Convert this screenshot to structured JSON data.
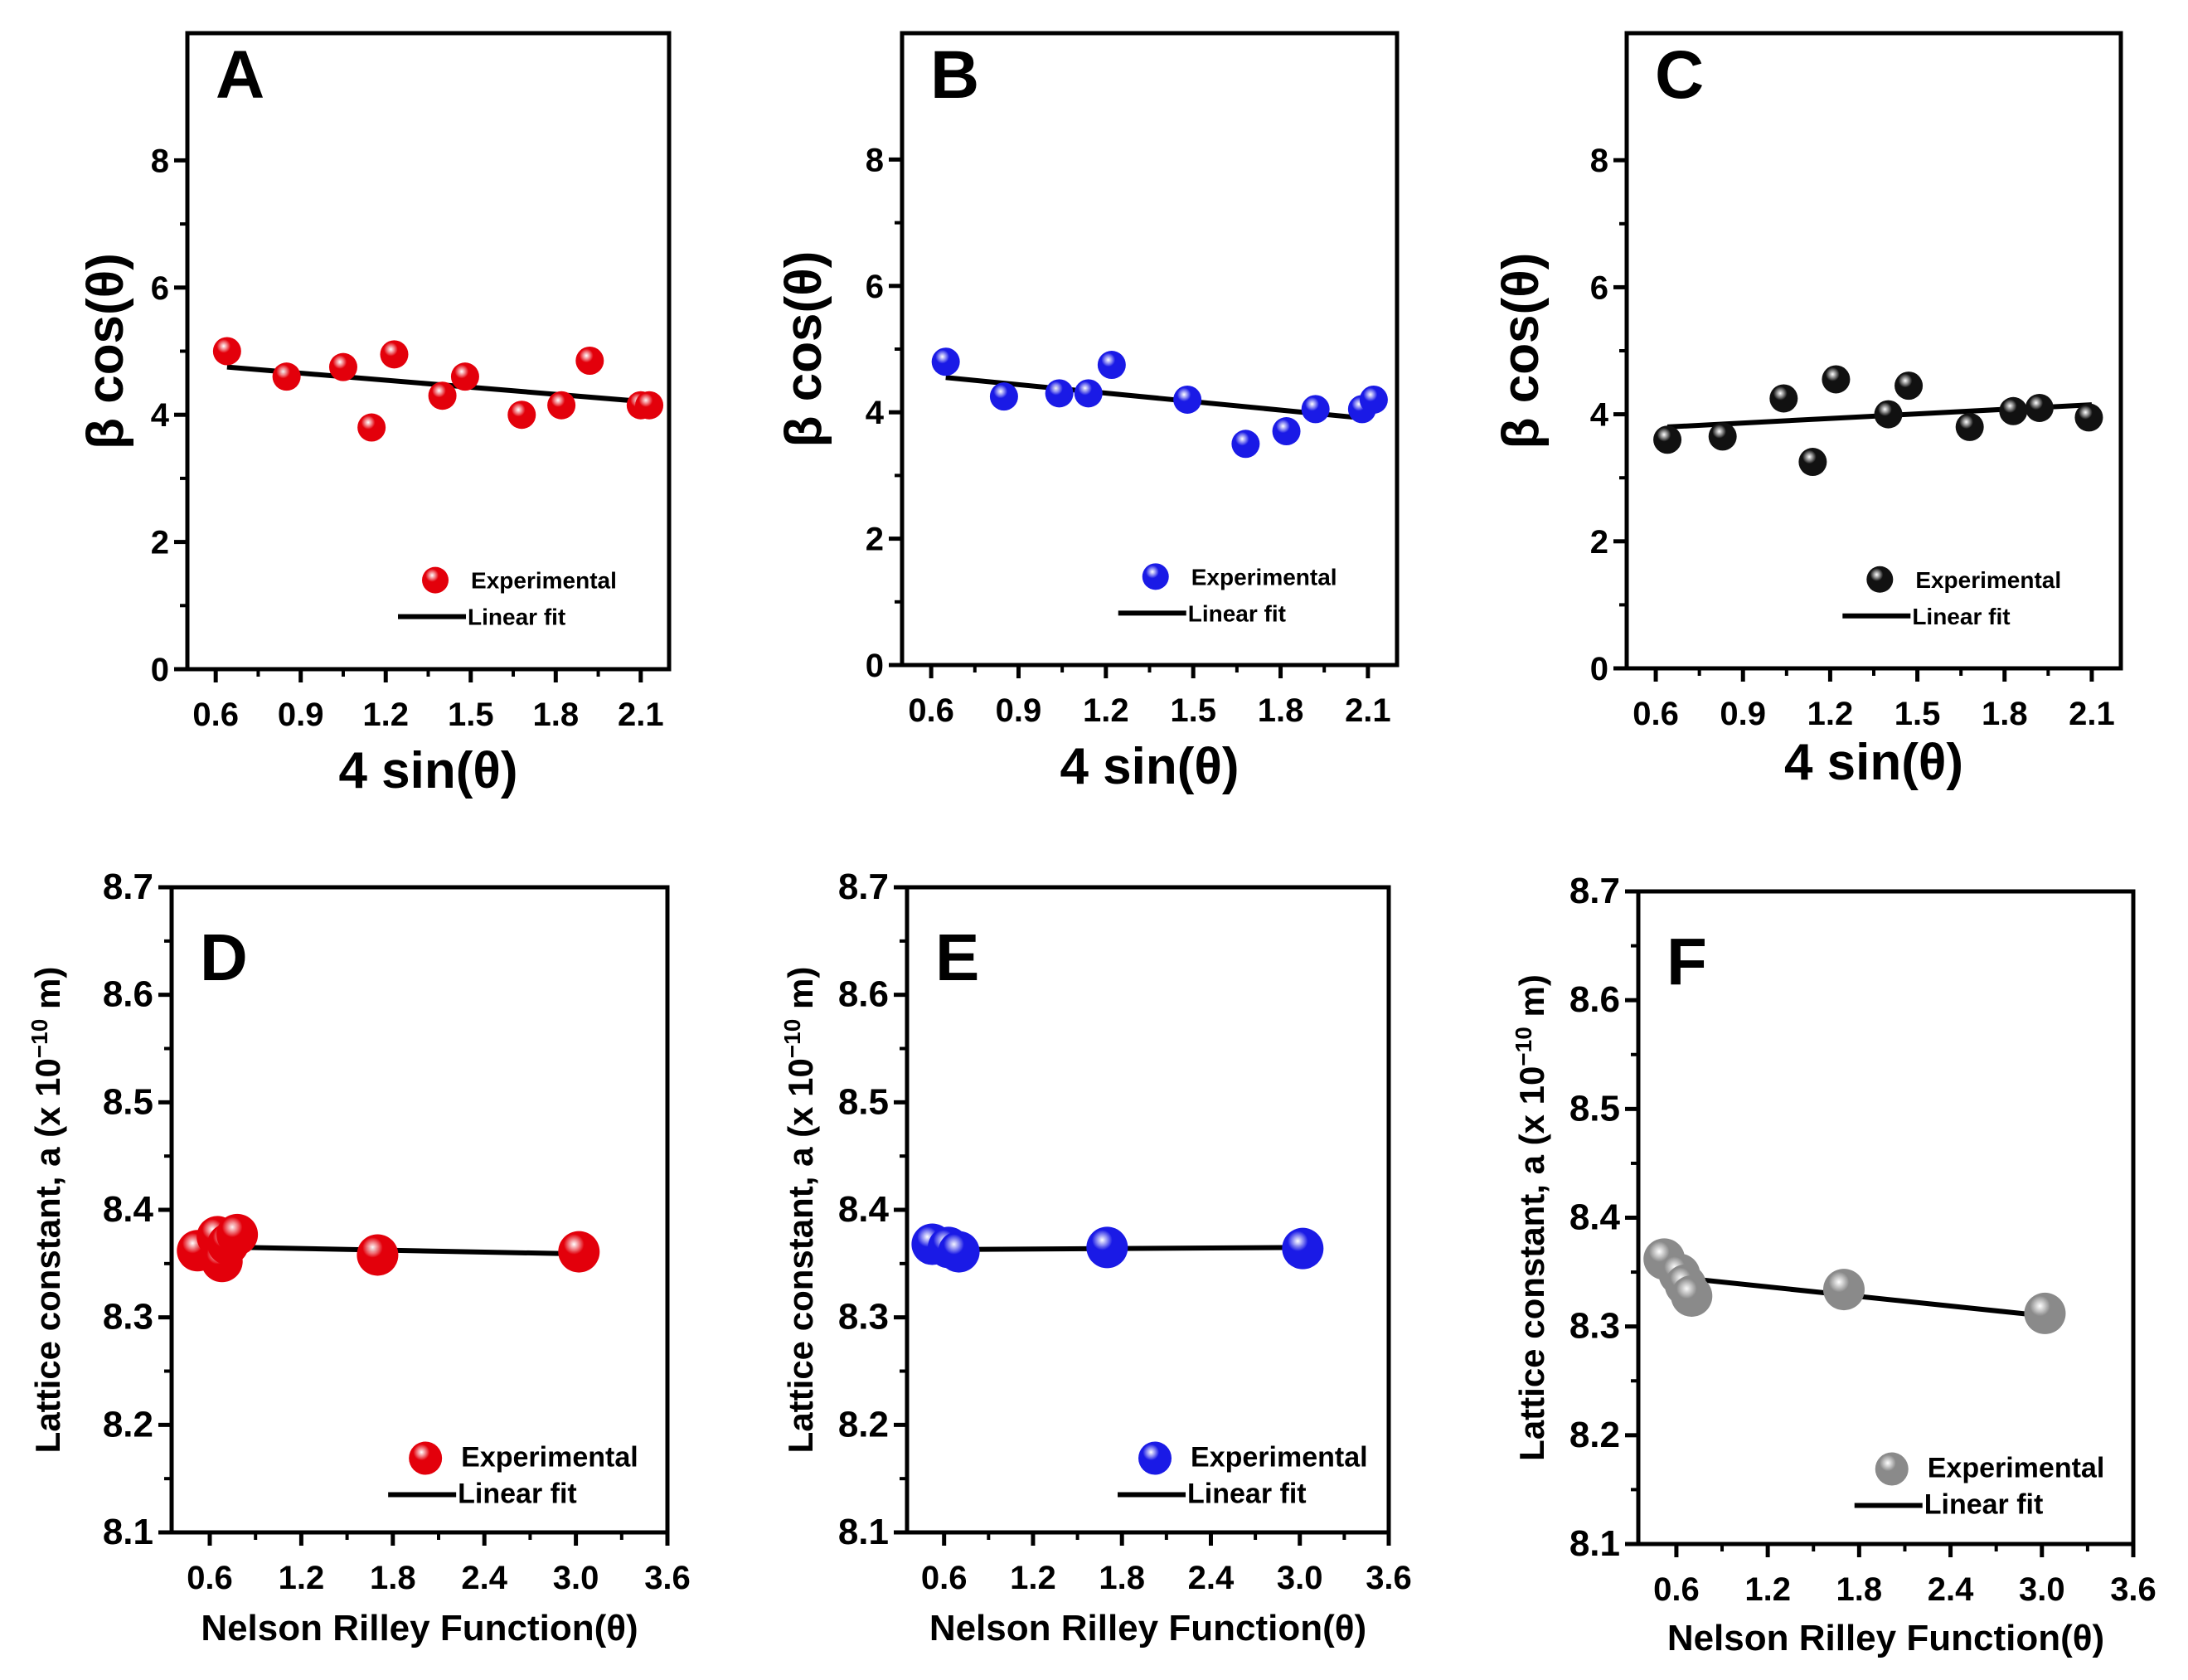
{
  "colors": {
    "axis": "#000000",
    "fit": "#000000"
  },
  "chart_data": [
    {
      "type": "scatter",
      "panel": "A",
      "xlabel": "4 sin(θ)",
      "ylabel": "β cos(θ)",
      "xticks": [
        0.6,
        0.9,
        1.2,
        1.5,
        1.8,
        2.1
      ],
      "xtick_labels": [
        "0.6",
        "0.9",
        "1.2",
        "1.5",
        "1.8",
        "2.1"
      ],
      "yticks": [
        0,
        2,
        4,
        6,
        8
      ],
      "ytick_labels": [
        "0",
        "2",
        "4",
        "6",
        "8"
      ],
      "xlim": [
        0.5,
        2.2
      ],
      "ylim": [
        0,
        10
      ],
      "marker_color": "#e3000b",
      "x": [
        0.64,
        0.85,
        1.05,
        1.15,
        1.23,
        1.4,
        1.48,
        1.68,
        1.82,
        1.92,
        2.1,
        2.13
      ],
      "y": [
        5.0,
        4.6,
        4.75,
        3.8,
        4.95,
        4.3,
        4.6,
        4.0,
        4.15,
        4.85,
        4.15,
        4.15
      ],
      "fit": {
        "x": [
          0.64,
          2.13
        ],
        "y": [
          4.75,
          4.2
        ]
      },
      "legend": {
        "experimental": "Experimental",
        "fit": "Linear fit",
        "position": "bottom-right"
      }
    },
    {
      "type": "scatter",
      "panel": "B",
      "xlabel": "4 sin(θ)",
      "ylabel": "β cos(θ)",
      "xticks": [
        0.6,
        0.9,
        1.2,
        1.5,
        1.8,
        2.1
      ],
      "xtick_labels": [
        "0.6",
        "0.9",
        "1.2",
        "1.5",
        "1.8",
        "2.1"
      ],
      "yticks": [
        0,
        2,
        4,
        6,
        8
      ],
      "ytick_labels": [
        "0",
        "2",
        "4",
        "6",
        "8"
      ],
      "xlim": [
        0.5,
        2.2
      ],
      "ylim": [
        0,
        10
      ],
      "marker_color": "#1a1ae6",
      "x": [
        0.65,
        0.85,
        1.04,
        1.14,
        1.22,
        1.48,
        1.68,
        1.82,
        1.92,
        2.08,
        2.12
      ],
      "y": [
        4.8,
        4.25,
        4.3,
        4.3,
        4.75,
        4.2,
        3.5,
        3.7,
        4.05,
        4.05,
        4.2
      ],
      "fit": {
        "x": [
          0.65,
          2.1
        ],
        "y": [
          4.55,
          3.9
        ]
      },
      "legend": {
        "experimental": "Experimental",
        "fit": "Linear fit",
        "position": "bottom-right"
      }
    },
    {
      "type": "scatter",
      "panel": "C",
      "xlabel": "4 sin(θ)",
      "ylabel": "β cos(θ)",
      "xticks": [
        0.6,
        0.9,
        1.2,
        1.5,
        1.8,
        2.1
      ],
      "xtick_labels": [
        "0.6",
        "0.9",
        "1.2",
        "1.5",
        "1.8",
        "2.1"
      ],
      "yticks": [
        0,
        2,
        4,
        6,
        8
      ],
      "ytick_labels": [
        "0",
        "2",
        "4",
        "6",
        "8"
      ],
      "xlim": [
        0.5,
        2.2
      ],
      "ylim": [
        0,
        10
      ],
      "marker_color": "#111111",
      "x": [
        0.64,
        0.83,
        1.04,
        1.14,
        1.22,
        1.4,
        1.47,
        1.68,
        1.83,
        1.92,
        2.09
      ],
      "y": [
        3.6,
        3.65,
        4.25,
        3.25,
        4.55,
        4.0,
        4.45,
        3.8,
        4.05,
        4.1,
        3.95
      ],
      "fit": {
        "x": [
          0.64,
          2.1
        ],
        "y": [
          3.8,
          4.15
        ]
      },
      "legend": {
        "experimental": "Experimental",
        "fit": "Linear fit",
        "position": "bottom-right"
      }
    },
    {
      "type": "scatter",
      "panel": "D",
      "xlabel": "Nelson Rilley Function(θ)",
      "ylabel": "Lattice constant, a (x 10",
      "ylabel_exp": "−10",
      "ylabel_unit": " m)",
      "xticks": [
        0.6,
        1.2,
        1.8,
        2.4,
        3.0,
        3.6
      ],
      "xtick_labels": [
        "0.6",
        "1.2",
        "1.8",
        "2.4",
        "3.0",
        "3.6"
      ],
      "yticks": [
        8.1,
        8.2,
        8.3,
        8.4,
        8.5,
        8.6,
        8.7
      ],
      "ytick_labels": [
        "8.1",
        "8.2",
        "8.3",
        "8.4",
        "8.5",
        "8.6",
        "8.7"
      ],
      "xlim": [
        0.35,
        3.6
      ],
      "ylim": [
        8.1,
        8.7
      ],
      "marker_color": "#e3000b",
      "x": [
        0.52,
        0.65,
        0.68,
        0.72,
        0.78,
        1.7,
        3.02
      ],
      "y": [
        8.362,
        8.375,
        8.352,
        8.368,
        8.377,
        8.358,
        8.361
      ],
      "fit": {
        "x": [
          0.5,
          3.02
        ],
        "y": [
          8.366,
          8.359
        ]
      },
      "legend": {
        "experimental": "Experimental",
        "fit": "Linear fit",
        "position": "bottom-right"
      }
    },
    {
      "type": "scatter",
      "panel": "E",
      "xlabel": "Nelson Rilley Function(θ)",
      "ylabel": "Lattice constant, a (x 10",
      "ylabel_exp": "−10",
      "ylabel_unit": " m)",
      "xticks": [
        0.6,
        1.2,
        1.8,
        2.4,
        3.0,
        3.6
      ],
      "xtick_labels": [
        "0.6",
        "1.2",
        "1.8",
        "2.4",
        "3.0",
        "3.6"
      ],
      "yticks": [
        8.1,
        8.2,
        8.3,
        8.4,
        8.5,
        8.6,
        8.7
      ],
      "ytick_labels": [
        "8.1",
        "8.2",
        "8.3",
        "8.4",
        "8.5",
        "8.6",
        "8.7"
      ],
      "xlim": [
        0.35,
        3.6
      ],
      "ylim": [
        8.1,
        8.7
      ],
      "marker_color": "#1a1ae6",
      "x": [
        0.52,
        0.63,
        0.7,
        1.7,
        3.02
      ],
      "y": [
        8.368,
        8.365,
        8.361,
        8.365,
        8.364
      ],
      "fit": {
        "x": [
          0.5,
          3.02
        ],
        "y": [
          8.363,
          8.365
        ]
      },
      "legend": {
        "experimental": "Experimental",
        "fit": "Linear fit",
        "position": "bottom-right"
      }
    },
    {
      "type": "scatter",
      "panel": "F",
      "xlabel": "Nelson Rilley Function(θ)",
      "ylabel": "Lattice constant, a (x 10",
      "ylabel_exp": "−10",
      "ylabel_unit": " m)",
      "xticks": [
        0.6,
        1.2,
        1.8,
        2.4,
        3.0,
        3.6
      ],
      "xtick_labels": [
        "0.6",
        "1.2",
        "1.8",
        "2.4",
        "3.0",
        "3.6"
      ],
      "yticks": [
        8.1,
        8.2,
        8.3,
        8.4,
        8.5,
        8.6,
        8.7
      ],
      "ytick_labels": [
        "8.1",
        "8.2",
        "8.3",
        "8.4",
        "8.5",
        "8.6",
        "8.7"
      ],
      "xlim": [
        0.35,
        3.6
      ],
      "ylim": [
        8.1,
        8.7
      ],
      "marker_color": "#8a8a8a",
      "x": [
        0.52,
        0.62,
        0.66,
        0.7,
        1.7,
        3.02
      ],
      "y": [
        8.362,
        8.348,
        8.338,
        8.328,
        8.334,
        8.312
      ],
      "fit": {
        "x": [
          0.55,
          3.0
        ],
        "y": [
          8.346,
          8.31
        ]
      },
      "legend": {
        "experimental": "Experimental",
        "fit": "Linear fit",
        "position": "bottom-right"
      }
    }
  ]
}
